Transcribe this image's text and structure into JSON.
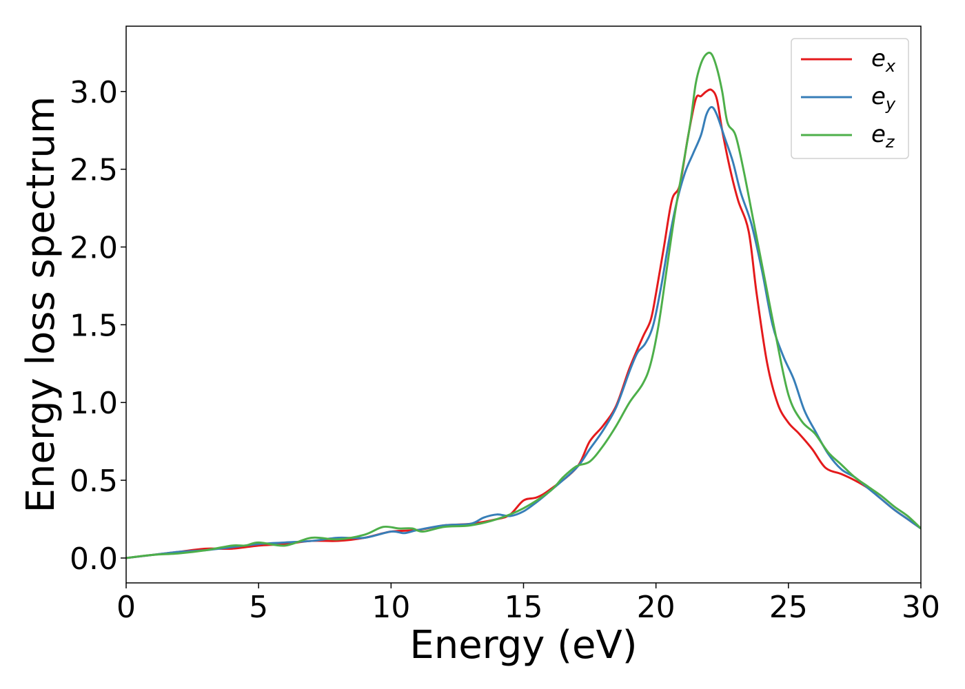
{
  "chart_data": {
    "type": "line",
    "title": "",
    "xlabel": "Energy (eV)",
    "ylabel": "Energy loss spectrum",
    "xlim": [
      0,
      30
    ],
    "ylim": [
      -0.16,
      3.42
    ],
    "xticks": [
      0,
      5,
      10,
      15,
      20,
      25,
      30
    ],
    "xtick_labels": [
      "0",
      "5",
      "10",
      "15",
      "20",
      "25",
      "30"
    ],
    "yticks": [
      0.0,
      0.5,
      1.0,
      1.5,
      2.0,
      2.5,
      3.0
    ],
    "ytick_labels": [
      "0.0",
      "0.5",
      "1.0",
      "1.5",
      "2.0",
      "2.5",
      "3.0"
    ],
    "grid": false,
    "legend_position": "top-right",
    "series": [
      {
        "name": "e",
        "subscript": "x",
        "color": "#e41a1c",
        "x": [
          0,
          1,
          2,
          3,
          4,
          5,
          6,
          7,
          8,
          9,
          10,
          11,
          12,
          13,
          14,
          14.5,
          15,
          15.5,
          16,
          17,
          17.5,
          18,
          18.5,
          19,
          19.5,
          19.8,
          20,
          20.3,
          20.6,
          20.9,
          21.2,
          21.5,
          21.7,
          21.9,
          22.1,
          22.3,
          22.5,
          22.8,
          23.1,
          23.5,
          23.8,
          24.2,
          24.6,
          25,
          25.4,
          25.9,
          26.4,
          27,
          27.5,
          28,
          28.5,
          29,
          29.5,
          30
        ],
        "y": [
          0.0,
          0.02,
          0.04,
          0.06,
          0.06,
          0.08,
          0.09,
          0.11,
          0.11,
          0.13,
          0.17,
          0.18,
          0.21,
          0.22,
          0.25,
          0.28,
          0.37,
          0.39,
          0.44,
          0.58,
          0.75,
          0.85,
          0.98,
          1.22,
          1.42,
          1.53,
          1.7,
          2.0,
          2.3,
          2.4,
          2.7,
          2.95,
          2.97,
          3.0,
          3.01,
          2.95,
          2.75,
          2.5,
          2.3,
          2.1,
          1.7,
          1.25,
          0.99,
          0.87,
          0.8,
          0.7,
          0.58,
          0.54,
          0.5,
          0.45,
          0.38,
          0.31,
          0.25,
          0.19
        ]
      },
      {
        "name": "e",
        "subscript": "y",
        "color": "#377eb8",
        "x": [
          0,
          1,
          2,
          3,
          4,
          5,
          6,
          7,
          8,
          9,
          10,
          10.5,
          11,
          12,
          13,
          13.5,
          14,
          14.5,
          15,
          15.5,
          16,
          17,
          17.5,
          18,
          18.5,
          19,
          19.3,
          19.6,
          19.9,
          20.2,
          20.5,
          20.8,
          21.1,
          21.4,
          21.7,
          21.9,
          22.1,
          22.3,
          22.6,
          22.9,
          23.2,
          23.6,
          24,
          24.4,
          24.8,
          25.2,
          25.6,
          26,
          26.5,
          27,
          27.5,
          28,
          28.5,
          29,
          29.5,
          30
        ],
        "y": [
          0.0,
          0.02,
          0.04,
          0.05,
          0.07,
          0.09,
          0.1,
          0.11,
          0.13,
          0.13,
          0.17,
          0.16,
          0.18,
          0.21,
          0.22,
          0.26,
          0.28,
          0.27,
          0.3,
          0.36,
          0.43,
          0.58,
          0.7,
          0.82,
          0.97,
          1.2,
          1.32,
          1.38,
          1.5,
          1.75,
          2.05,
          2.3,
          2.48,
          2.6,
          2.72,
          2.85,
          2.9,
          2.85,
          2.7,
          2.55,
          2.35,
          2.15,
          1.85,
          1.5,
          1.3,
          1.15,
          0.95,
          0.82,
          0.67,
          0.57,
          0.52,
          0.45,
          0.38,
          0.31,
          0.25,
          0.19
        ]
      },
      {
        "name": "e",
        "subscript": "z",
        "color": "#4daf4a",
        "x": [
          0,
          1,
          2,
          3,
          4,
          4.5,
          5,
          6,
          7,
          8,
          9,
          9.7,
          10.3,
          10.8,
          11.2,
          12,
          13,
          14,
          15,
          16,
          16.5,
          17,
          17.5,
          18,
          18.5,
          19,
          19.5,
          19.8,
          20.1,
          20.4,
          20.7,
          21,
          21.3,
          21.5,
          21.7,
          21.9,
          22.1,
          22.3,
          22.5,
          22.7,
          23,
          23.3,
          23.7,
          24.1,
          24.5,
          25,
          25.5,
          26,
          26.5,
          27,
          27.5,
          28,
          28.5,
          29,
          29.5,
          30
        ],
        "y": [
          0.0,
          0.02,
          0.03,
          0.05,
          0.08,
          0.08,
          0.1,
          0.08,
          0.13,
          0.12,
          0.15,
          0.2,
          0.19,
          0.19,
          0.17,
          0.2,
          0.21,
          0.25,
          0.32,
          0.43,
          0.52,
          0.59,
          0.62,
          0.72,
          0.85,
          1.0,
          1.12,
          1.25,
          1.5,
          1.85,
          2.2,
          2.5,
          2.8,
          3.05,
          3.18,
          3.24,
          3.24,
          3.15,
          3.0,
          2.8,
          2.72,
          2.5,
          2.15,
          1.8,
          1.45,
          1.05,
          0.88,
          0.8,
          0.68,
          0.6,
          0.52,
          0.46,
          0.4,
          0.33,
          0.27,
          0.19
        ]
      }
    ]
  }
}
